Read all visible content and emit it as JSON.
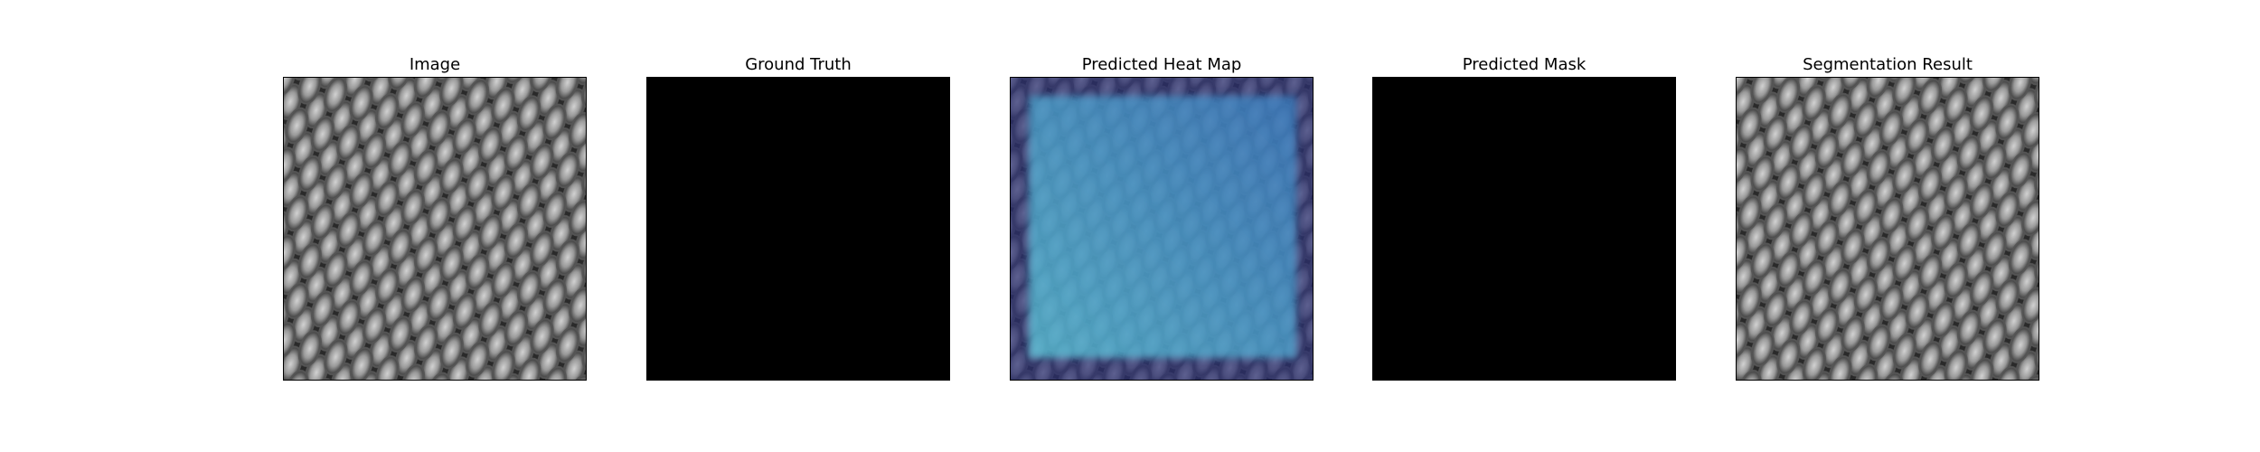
{
  "figure": {
    "panels": [
      {
        "title": "Image",
        "content": "grayscale-texture"
      },
      {
        "title": "Ground Truth",
        "content": "black-mask"
      },
      {
        "title": "Predicted Heat Map",
        "content": "heatmap-overlay"
      },
      {
        "title": "Predicted Mask",
        "content": "black-mask"
      },
      {
        "title": "Segmentation Result",
        "content": "grayscale-texture"
      }
    ]
  },
  "colors": {
    "background": "#ffffff",
    "mask": "#000000",
    "texture_dark": "#2a2a2a",
    "texture_light": "#b4b4b4",
    "heat_low": "#2b2f73",
    "heat_high": "#5fd0e0"
  }
}
